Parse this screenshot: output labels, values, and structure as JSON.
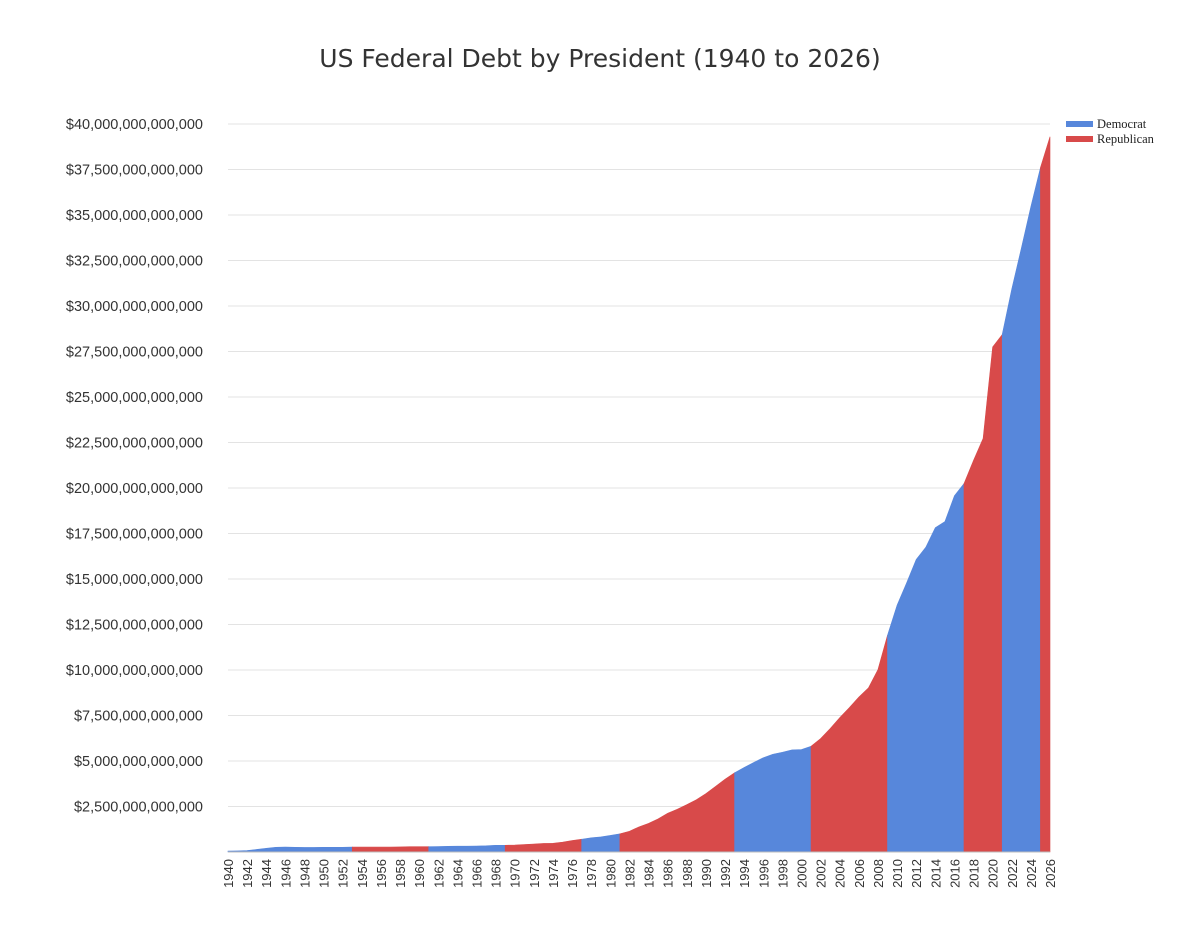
{
  "chart_data": {
    "type": "area",
    "title": "US Federal Debt by President (1940 to 2026)",
    "xlabel": "",
    "ylabel": "",
    "xlim": [
      1940,
      2026
    ],
    "ylim": [
      0,
      40000000000000
    ],
    "grid": true,
    "legend_position": "top-right",
    "y_ticks": [
      {
        "value": 2500000000000,
        "label": "$2,500,000,000,000"
      },
      {
        "value": 5000000000000,
        "label": "$5,000,000,000,000"
      },
      {
        "value": 7500000000000,
        "label": "$7,500,000,000,000"
      },
      {
        "value": 10000000000000,
        "label": "$10,000,000,000,000"
      },
      {
        "value": 12500000000000,
        "label": "$12,500,000,000,000"
      },
      {
        "value": 15000000000000,
        "label": "$15,000,000,000,000"
      },
      {
        "value": 17500000000000,
        "label": "$17,500,000,000,000"
      },
      {
        "value": 20000000000000,
        "label": "$20,000,000,000,000"
      },
      {
        "value": 22500000000000,
        "label": "$22,500,000,000,000"
      },
      {
        "value": 25000000000000,
        "label": "$25,000,000,000,000"
      },
      {
        "value": 27500000000000,
        "label": "$27,500,000,000,000"
      },
      {
        "value": 30000000000000,
        "label": "$30,000,000,000,000"
      },
      {
        "value": 32500000000000,
        "label": "$32,500,000,000,000"
      },
      {
        "value": 35000000000000,
        "label": "$35,000,000,000,000"
      },
      {
        "value": 37500000000000,
        "label": "$37,500,000,000,000"
      },
      {
        "value": 40000000000000,
        "label": "$40,000,000,000,000"
      }
    ],
    "x_ticks": [
      "1940",
      "1942",
      "1944",
      "1946",
      "1948",
      "1950",
      "1952",
      "1954",
      "1956",
      "1958",
      "1960",
      "1962",
      "1964",
      "1966",
      "1968",
      "1970",
      "1972",
      "1974",
      "1976",
      "1978",
      "1980",
      "1982",
      "1984",
      "1986",
      "1988",
      "1990",
      "1992",
      "1994",
      "1996",
      "1998",
      "2000",
      "2002",
      "2004",
      "2006",
      "2008",
      "2010",
      "2012",
      "2014",
      "2016",
      "2018",
      "2020",
      "2022",
      "2024",
      "2026"
    ],
    "legend": [
      {
        "name": "Democrat",
        "color": "#5787DB"
      },
      {
        "name": "Republican",
        "color": "#D84A4A"
      }
    ],
    "series": [
      {
        "name": "Democrat",
        "color": "#5787DB"
      },
      {
        "name": "Republican",
        "color": "#D84A4A"
      }
    ],
    "debt_values": [
      [
        1940,
        0.05
      ],
      [
        1941,
        0.06
      ],
      [
        1942,
        0.08
      ],
      [
        1943,
        0.14
      ],
      [
        1944,
        0.2
      ],
      [
        1945,
        0.26
      ],
      [
        1946,
        0.27
      ],
      [
        1947,
        0.26
      ],
      [
        1948,
        0.25
      ],
      [
        1949,
        0.25
      ],
      [
        1950,
        0.26
      ],
      [
        1951,
        0.26
      ],
      [
        1952,
        0.26
      ],
      [
        1953,
        0.27
      ],
      [
        1954,
        0.27
      ],
      [
        1955,
        0.27
      ],
      [
        1956,
        0.27
      ],
      [
        1957,
        0.27
      ],
      [
        1958,
        0.28
      ],
      [
        1959,
        0.29
      ],
      [
        1960,
        0.29
      ],
      [
        1961,
        0.29
      ],
      [
        1962,
        0.3
      ],
      [
        1963,
        0.31
      ],
      [
        1964,
        0.32
      ],
      [
        1965,
        0.32
      ],
      [
        1966,
        0.33
      ],
      [
        1967,
        0.34
      ],
      [
        1968,
        0.37
      ],
      [
        1969,
        0.37
      ],
      [
        1970,
        0.38
      ],
      [
        1971,
        0.41
      ],
      [
        1972,
        0.44
      ],
      [
        1973,
        0.47
      ],
      [
        1974,
        0.48
      ],
      [
        1975,
        0.54
      ],
      [
        1976,
        0.63
      ],
      [
        1977,
        0.7
      ],
      [
        1978,
        0.78
      ],
      [
        1979,
        0.83
      ],
      [
        1980,
        0.91
      ],
      [
        1981,
        1.0
      ],
      [
        1982,
        1.14
      ],
      [
        1983,
        1.38
      ],
      [
        1984,
        1.57
      ],
      [
        1985,
        1.82
      ],
      [
        1986,
        2.13
      ],
      [
        1987,
        2.35
      ],
      [
        1988,
        2.6
      ],
      [
        1989,
        2.87
      ],
      [
        1990,
        3.21
      ],
      [
        1991,
        3.6
      ],
      [
        1992,
        4.0
      ],
      [
        1993,
        4.35
      ],
      [
        1994,
        4.64
      ],
      [
        1995,
        4.92
      ],
      [
        1996,
        5.18
      ],
      [
        1997,
        5.37
      ],
      [
        1998,
        5.48
      ],
      [
        1999,
        5.61
      ],
      [
        2000,
        5.63
      ],
      [
        2001,
        5.81
      ],
      [
        2002,
        6.23
      ],
      [
        2003,
        6.78
      ],
      [
        2004,
        7.38
      ],
      [
        2005,
        7.93
      ],
      [
        2006,
        8.51
      ],
      [
        2007,
        9.01
      ],
      [
        2008,
        10.02
      ],
      [
        2009,
        11.91
      ],
      [
        2010,
        13.56
      ],
      [
        2011,
        14.79
      ],
      [
        2012,
        16.07
      ],
      [
        2013,
        16.74
      ],
      [
        2014,
        17.82
      ],
      [
        2015,
        18.15
      ],
      [
        2016,
        19.57
      ],
      [
        2017,
        20.24
      ],
      [
        2018,
        21.52
      ],
      [
        2019,
        22.72
      ],
      [
        2020,
        27.75
      ],
      [
        2021,
        28.43
      ],
      [
        2022,
        30.93
      ],
      [
        2023,
        33.17
      ],
      [
        2024,
        35.46
      ],
      [
        2025,
        37.6
      ],
      [
        2026,
        39.3
      ]
    ],
    "debt_units": "trillions of dollars",
    "presidential_terms": [
      {
        "start": 1940,
        "end": 1953,
        "party": "Democrat"
      },
      {
        "start": 1953,
        "end": 1961,
        "party": "Republican"
      },
      {
        "start": 1961,
        "end": 1969,
        "party": "Democrat"
      },
      {
        "start": 1969,
        "end": 1977,
        "party": "Republican"
      },
      {
        "start": 1977,
        "end": 1981,
        "party": "Democrat"
      },
      {
        "start": 1981,
        "end": 1993,
        "party": "Republican"
      },
      {
        "start": 1993,
        "end": 2001,
        "party": "Democrat"
      },
      {
        "start": 2001,
        "end": 2009,
        "party": "Republican"
      },
      {
        "start": 2009,
        "end": 2017,
        "party": "Democrat"
      },
      {
        "start": 2017,
        "end": 2021,
        "party": "Republican"
      },
      {
        "start": 2021,
        "end": 2025,
        "party": "Democrat"
      },
      {
        "start": 2025,
        "end": 2026,
        "party": "Republican"
      }
    ]
  }
}
